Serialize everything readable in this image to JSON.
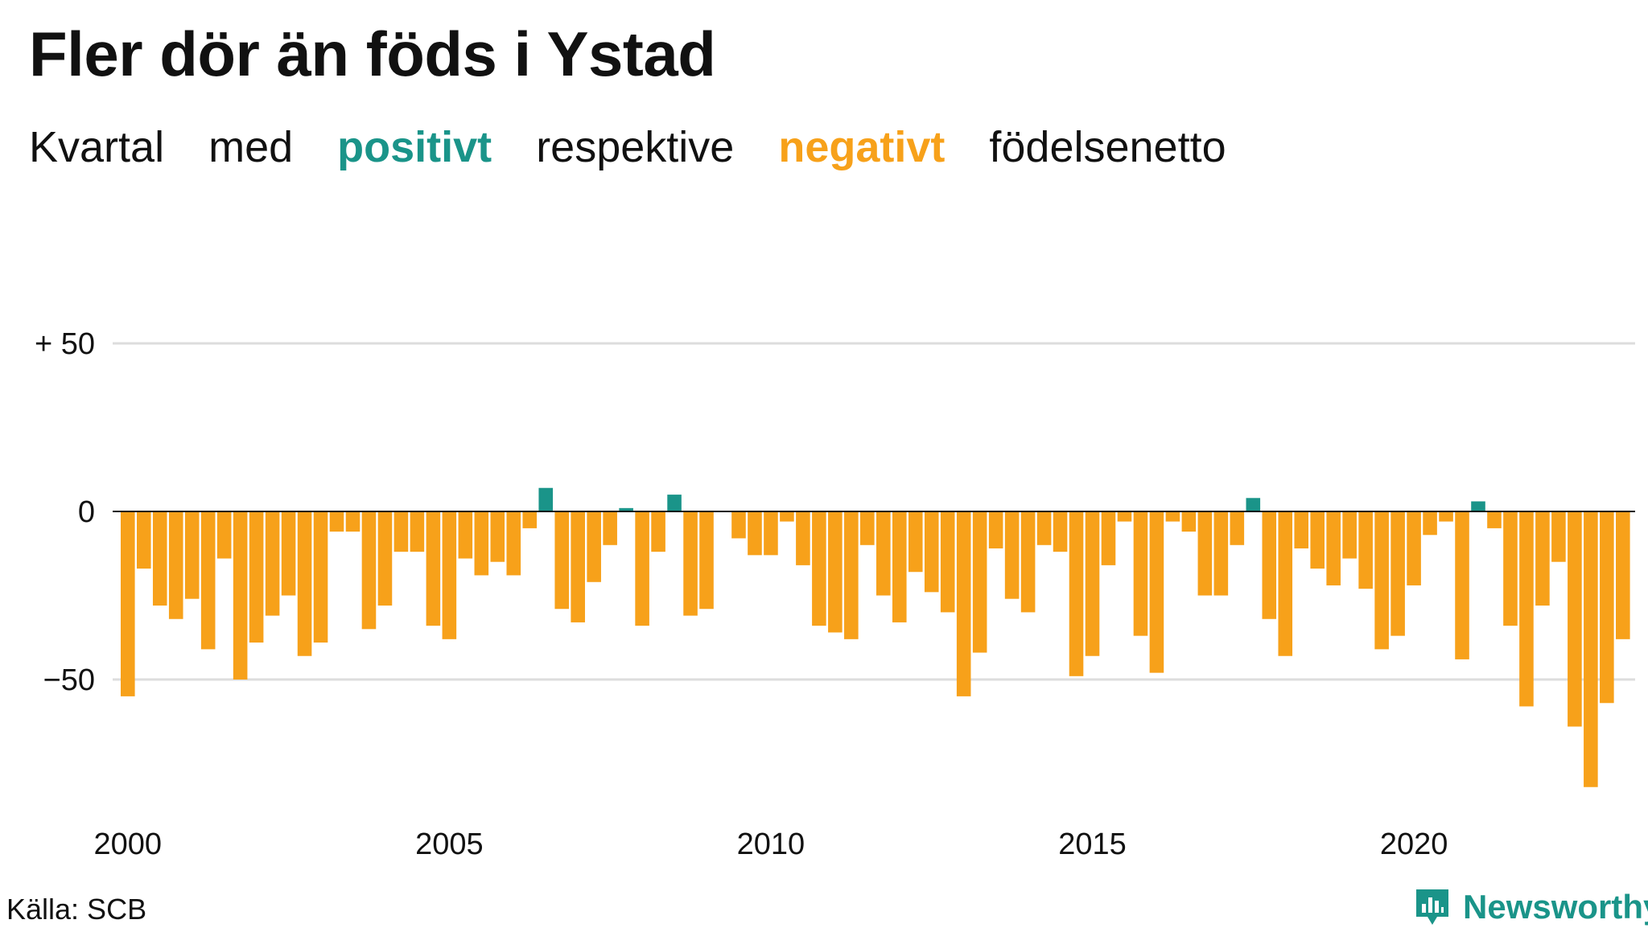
{
  "title": "Fler dör än föds i Ystad",
  "subtitle": {
    "part1": "Kvartal",
    "part2": "med",
    "positive": "positivt",
    "part3": "respektive",
    "negative": "negativt",
    "part4": "födelsenetto"
  },
  "source": "Källa: SCB",
  "logo_text": "Newsworthy",
  "colors": {
    "positive": "#1a9489",
    "negative": "#f7a11a",
    "grid": "#dddddd",
    "axis": "#111111"
  },
  "chart_data": {
    "type": "bar",
    "title": "Fler dör än föds i Ystad",
    "x_start": "2000 Q1",
    "x_ticks": [
      "2000",
      "2005",
      "2010",
      "2015",
      "2020"
    ],
    "y_ticks": [
      {
        "value": 50,
        "label": "+ 50"
      },
      {
        "value": 0,
        "label": "0"
      },
      {
        "value": -50,
        "label": "−50"
      }
    ],
    "ylim": [
      -90,
      60
    ],
    "grid": true,
    "values": [
      -55,
      -17,
      -28,
      -32,
      -26,
      -41,
      -14,
      -50,
      -39,
      -31,
      -25,
      -43,
      -39,
      -6,
      -6,
      -35,
      -28,
      -12,
      -12,
      -34,
      -38,
      -14,
      -19,
      -15,
      -19,
      -5,
      7,
      -29,
      -33,
      -21,
      -10,
      1,
      -34,
      -12,
      5,
      -31,
      -29,
      0,
      -8,
      -13,
      -13,
      -3,
      -16,
      -34,
      -36,
      -38,
      -10,
      -25,
      -33,
      -18,
      -24,
      -30,
      -55,
      -42,
      -11,
      -26,
      -30,
      -10,
      -12,
      -49,
      -43,
      -16,
      -3,
      -37,
      -48,
      -3,
      -6,
      -25,
      -25,
      -10,
      4,
      -32,
      -43,
      -11,
      -17,
      -22,
      -14,
      -23,
      -41,
      -37,
      -22,
      -7,
      -3,
      -44,
      3,
      -5,
      -34,
      -58,
      -28,
      -15,
      -64,
      -82,
      -57,
      -38
    ]
  }
}
